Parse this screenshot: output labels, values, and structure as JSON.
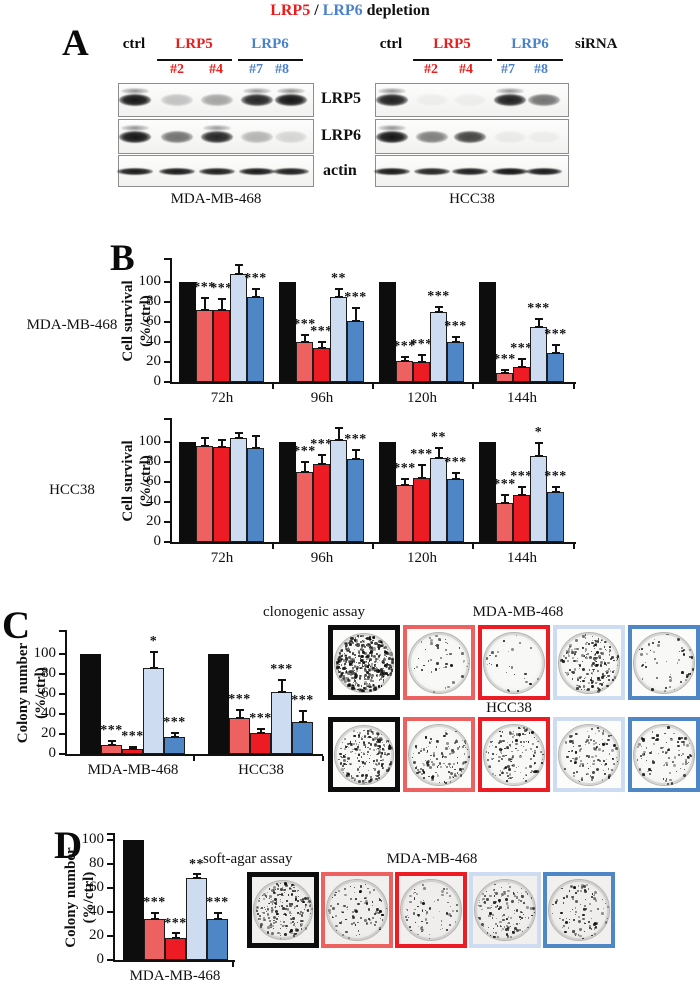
{
  "title": {
    "part1": "LRP5",
    "part2": " / ",
    "part3": "LRP6",
    "part4": " depletion"
  },
  "colors": {
    "bar_black": "#0d0d0d",
    "salmon": "#ee6161",
    "red": "#ed1c24",
    "light_blue": "#cddcf0",
    "blue": "#4f86c6",
    "text_red": "#ed1c1c",
    "text_blue": "#4a82cc"
  },
  "panel_a": {
    "label": "A",
    "sirna_label": "siRNA",
    "header": {
      "ctrl": "ctrl",
      "lrp5": "LRP5",
      "lrp6": "LRP6"
    },
    "clone_labels": [
      "#2",
      "#4",
      "#7",
      "#8"
    ],
    "row_labels": [
      "LRP5",
      "LRP6",
      "actin"
    ],
    "groups": [
      {
        "cell_line": "MDA-MB-468",
        "bands": {
          "LRP5": [
            0.95,
            0.22,
            0.34,
            0.88,
            0.95
          ],
          "LRP6": [
            0.95,
            0.55,
            0.88,
            0.28,
            0.14
          ],
          "actin": [
            0.92,
            0.92,
            0.9,
            0.92,
            0.9
          ]
        }
      },
      {
        "cell_line": "HCC38",
        "bands": {
          "LRP5": [
            0.9,
            0.04,
            0.04,
            0.9,
            0.55
          ],
          "LRP6": [
            0.95,
            0.5,
            0.75,
            0.05,
            0.04
          ],
          "actin": [
            0.92,
            0.88,
            0.9,
            0.95,
            0.92
          ]
        }
      }
    ]
  },
  "panel_b": {
    "label": "B"
  },
  "panel_c": {
    "label": "C",
    "assay_label": "clonogenic assay",
    "dish_rows": [
      {
        "cell_line": "MDA-MB-468",
        "densities": [
          400,
          45,
          28,
          200,
          50
        ]
      },
      {
        "cell_line": "HCC38",
        "densities": [
          230,
          130,
          140,
          115,
          95
        ]
      }
    ]
  },
  "panel_d": {
    "label": "D",
    "assay_label": "soft-agar assay",
    "dish_row": {
      "cell_line": "MDA-MB-468",
      "densities": [
        210,
        90,
        70,
        140,
        100
      ]
    }
  },
  "chart_data": [
    {
      "id": "b_mda",
      "type": "bar",
      "panel": "B",
      "group_label": "MDA-MB-468",
      "ylabel": "Cell survival (%/ctrl)",
      "ylabel_lines": [
        "Cell survival",
        "(%/ctrl)"
      ],
      "categories": [
        "72h",
        "96h",
        "120h",
        "144h"
      ],
      "yticks": [
        0,
        20,
        40,
        60,
        80,
        100
      ],
      "ylim": [
        0,
        120
      ],
      "series": [
        {
          "name": "ctrl",
          "color_key": "bar_black",
          "values": [
            100,
            100,
            100,
            100
          ],
          "errors": [
            0,
            0,
            0,
            0
          ],
          "stars": [
            "",
            "",
            "",
            ""
          ]
        },
        {
          "name": "LRP5 siRNA #2",
          "color_key": "salmon",
          "values": [
            72,
            40,
            21,
            9
          ],
          "errors": [
            12,
            7,
            4,
            3
          ],
          "stars": [
            "***",
            "***",
            "***",
            "***"
          ]
        },
        {
          "name": "LRP5 siRNA #4",
          "color_key": "red",
          "values": [
            72,
            34,
            20,
            15
          ],
          "errors": [
            11,
            6,
            7,
            8
          ],
          "stars": [
            "***",
            "***",
            "***",
            "***"
          ]
        },
        {
          "name": "LRP6 siRNA #7",
          "color_key": "light_blue",
          "values": [
            108,
            85,
            70,
            55
          ],
          "errors": [
            9,
            8,
            5,
            8
          ],
          "stars": [
            "",
            "**",
            "***",
            "***"
          ]
        },
        {
          "name": "LRP6 siRNA #8",
          "color_key": "blue",
          "values": [
            85,
            61,
            40,
            29
          ],
          "errors": [
            8,
            13,
            5,
            8
          ],
          "stars": [
            "***",
            "***",
            "***",
            "***"
          ]
        }
      ]
    },
    {
      "id": "b_hcc",
      "type": "bar",
      "panel": "B",
      "group_label": "HCC38",
      "ylabel": "Cell survival (%/ctrl)",
      "ylabel_lines": [
        "Cell survival",
        "(%/ctrl)"
      ],
      "categories": [
        "72h",
        "96h",
        "120h",
        "144h"
      ],
      "yticks": [
        0,
        20,
        40,
        60,
        80,
        100
      ],
      "ylim": [
        0,
        120
      ],
      "series": [
        {
          "name": "ctrl",
          "color_key": "bar_black",
          "values": [
            100,
            100,
            100,
            100
          ],
          "errors": [
            0,
            0,
            0,
            0
          ],
          "stars": [
            "",
            "",
            "",
            ""
          ]
        },
        {
          "name": "LRP5 siRNA #2",
          "color_key": "salmon",
          "values": [
            96,
            70,
            57,
            39
          ],
          "errors": [
            8,
            10,
            6,
            8
          ],
          "stars": [
            "",
            "***",
            "***",
            "***"
          ]
        },
        {
          "name": "LRP5 siRNA #4",
          "color_key": "red",
          "values": [
            95,
            78,
            64,
            47
          ],
          "errors": [
            7,
            9,
            13,
            8
          ],
          "stars": [
            "",
            "***",
            "***",
            "***"
          ]
        },
        {
          "name": "LRP6 siRNA #7",
          "color_key": "light_blue",
          "values": [
            104,
            102,
            84,
            86
          ],
          "errors": [
            5,
            12,
            10,
            13
          ],
          "stars": [
            "",
            "",
            "**",
            "*"
          ]
        },
        {
          "name": "LRP6 siRNA #8",
          "color_key": "blue",
          "values": [
            94,
            83,
            63,
            50
          ],
          "errors": [
            12,
            9,
            6,
            5
          ],
          "stars": [
            "",
            "***",
            "***",
            "***"
          ]
        }
      ]
    },
    {
      "id": "c_colony",
      "type": "bar",
      "panel": "C",
      "group_label": "",
      "ylabel": "Colony number (%/ctrl)",
      "ylabel_lines": [
        "Colony number",
        "(%/ctrl)"
      ],
      "categories": [
        "MDA-MB-468",
        "HCC38"
      ],
      "yticks": [
        0,
        20,
        40,
        60,
        80,
        100
      ],
      "ylim": [
        0,
        120
      ],
      "series": [
        {
          "name": "ctrl",
          "color_key": "bar_black",
          "values": [
            100,
            100
          ],
          "errors": [
            0,
            0
          ],
          "stars": [
            "",
            ""
          ]
        },
        {
          "name": "LRP5 siRNA #2",
          "color_key": "salmon",
          "values": [
            9,
            36
          ],
          "errors": [
            4,
            8
          ],
          "stars": [
            "***",
            "***"
          ]
        },
        {
          "name": "LRP5 siRNA #4",
          "color_key": "red",
          "values": [
            5,
            21
          ],
          "errors": [
            2,
            4
          ],
          "stars": [
            "***",
            "***"
          ]
        },
        {
          "name": "LRP6 siRNA #7",
          "color_key": "light_blue",
          "values": [
            86,
            62
          ],
          "errors": [
            16,
            12
          ],
          "stars": [
            "*",
            "***"
          ]
        },
        {
          "name": "LRP6 siRNA #8",
          "color_key": "blue",
          "values": [
            17,
            32
          ],
          "errors": [
            4,
            11
          ],
          "stars": [
            "***",
            "***"
          ]
        }
      ]
    },
    {
      "id": "d_colony",
      "type": "bar",
      "panel": "D",
      "group_label": "",
      "ylabel": "Colony number (%/ctrl)",
      "ylabel_lines": [
        "Colony number",
        "(%/ctrl)"
      ],
      "categories": [
        "MDA-MB-468"
      ],
      "yticks": [
        0,
        20,
        40,
        60,
        80,
        100
      ],
      "ylim": [
        0,
        104
      ],
      "series": [
        {
          "name": "ctrl",
          "color_key": "bar_black",
          "values": [
            100
          ],
          "errors": [
            0
          ],
          "stars": [
            ""
          ]
        },
        {
          "name": "LRP5 siRNA #2",
          "color_key": "salmon",
          "values": [
            34
          ],
          "errors": [
            5
          ],
          "stars": [
            "***"
          ]
        },
        {
          "name": "LRP5 siRNA #4",
          "color_key": "red",
          "values": [
            18
          ],
          "errors": [
            4
          ],
          "stars": [
            "***"
          ]
        },
        {
          "name": "LRP6 siRNA #7",
          "color_key": "light_blue",
          "values": [
            68
          ],
          "errors": [
            3
          ],
          "stars": [
            "**"
          ]
        },
        {
          "name": "LRP6 siRNA #8",
          "color_key": "blue",
          "values": [
            34
          ],
          "errors": [
            5
          ],
          "stars": [
            "***"
          ]
        }
      ]
    }
  ]
}
